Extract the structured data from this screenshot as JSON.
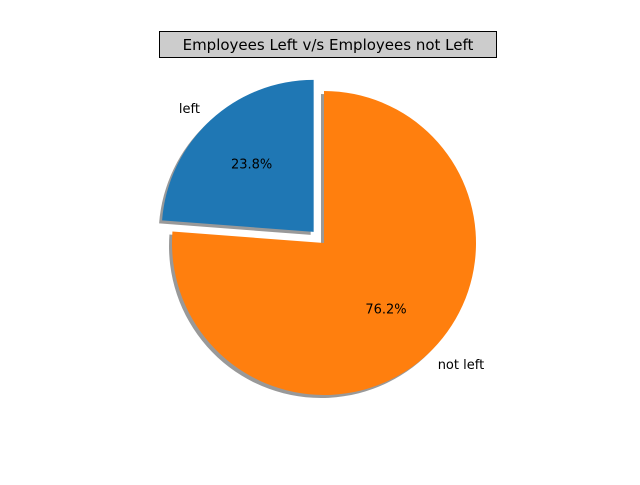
{
  "chart_data": {
    "type": "pie",
    "title": "Employees Left v/s Employees not Left",
    "labels": [
      "left",
      "not left"
    ],
    "values": [
      23.8,
      76.2
    ],
    "autopct_labels": [
      "23.8%",
      "76.2%"
    ],
    "colors": [
      "#1f77b4",
      "#ff7f0e"
    ],
    "explode": [
      0.1,
      0.0
    ],
    "shadow": true,
    "start_angle_deg": 90,
    "direction": "counterclockwise",
    "legend": "none"
  }
}
